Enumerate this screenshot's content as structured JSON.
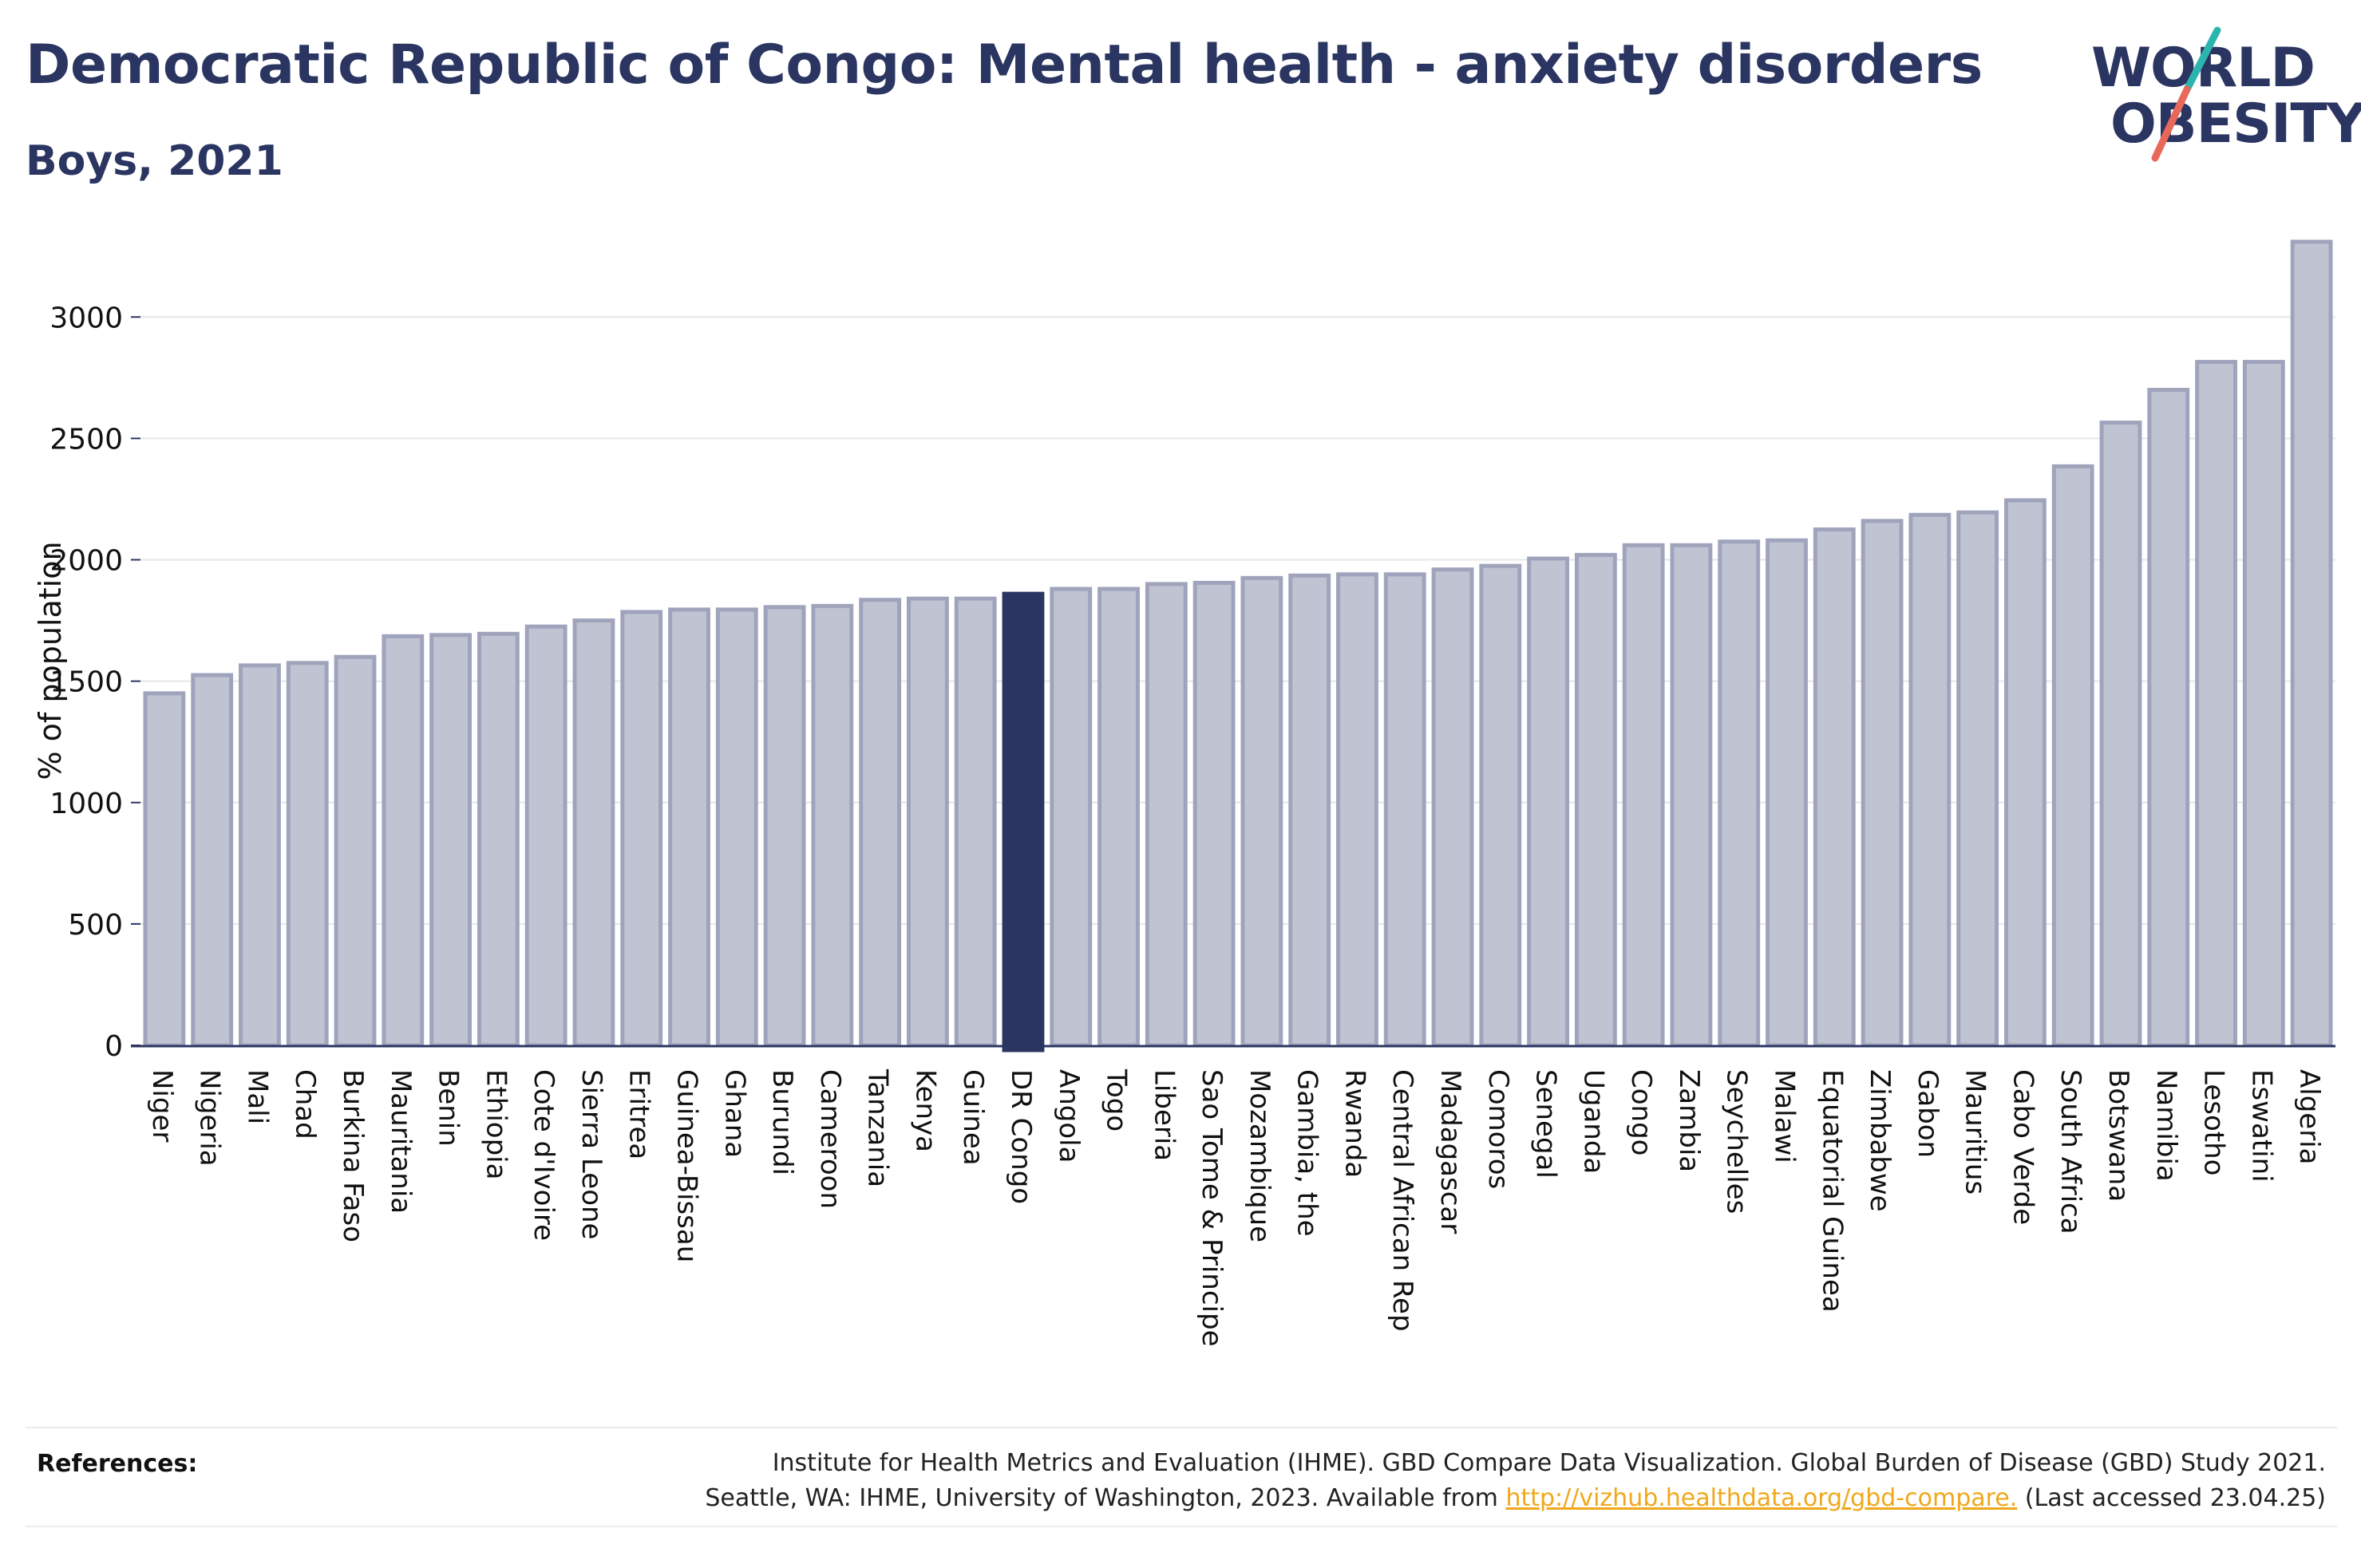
{
  "header": {
    "title": "Democratic Republic of Congo: Mental health - anxiety disorders",
    "subtitle": "Boys, 2021"
  },
  "logo": {
    "line1": "WORLD",
    "line2": "OBESITY",
    "slash_colors": [
      "#2cb5ae",
      "#e8685a"
    ]
  },
  "colors": {
    "bar": "#c0c3d1",
    "bar_stroke": "#9fa4bc",
    "highlight": "#2b3561",
    "text": "#2b3561"
  },
  "chart_data": {
    "type": "bar",
    "title": "Democratic Republic of Congo: Mental health - anxiety disorders",
    "subtitle": "Boys, 2021",
    "xlabel": "",
    "ylabel": "% of population",
    "ylim": [
      0,
      3300
    ],
    "yticks": [
      0,
      500,
      1000,
      1500,
      2000,
      2500,
      3000
    ],
    "grid": true,
    "highlight_category": "DR Congo",
    "categories": [
      "Niger",
      "Nigeria",
      "Mali",
      "Chad",
      "Burkina Faso",
      "Mauritania",
      "Benin",
      "Ethiopia",
      "Cote d'Ivoire",
      "Sierra Leone",
      "Eritrea",
      "Guinea-Bissau",
      "Ghana",
      "Burundi",
      "Cameroon",
      "Tanzania",
      "Kenya",
      "Guinea",
      "DR Congo",
      "Angola",
      "Togo",
      "Liberia",
      "Sao Tome & Principe",
      "Mozambique",
      "Gambia, the",
      "Rwanda",
      "Central African Rep",
      "Madagascar",
      "Comoros",
      "Senegal",
      "Uganda",
      "Congo",
      "Zambia",
      "Seychelles",
      "Malawi",
      "Equatorial Guinea",
      "Zimbabwe",
      "Gabon",
      "Mauritius",
      "Cabo Verde",
      "South Africa",
      "Botswana",
      "Namibia",
      "Lesotho",
      "Eswatini",
      "Algeria"
    ],
    "values": [
      1450,
      1525,
      1565,
      1575,
      1600,
      1685,
      1690,
      1695,
      1725,
      1750,
      1785,
      1795,
      1795,
      1805,
      1810,
      1835,
      1840,
      1840,
      1860,
      1880,
      1880,
      1900,
      1905,
      1925,
      1935,
      1940,
      1940,
      1960,
      1975,
      2005,
      2020,
      2060,
      2060,
      2075,
      2080,
      2125,
      2160,
      2185,
      2195,
      2245,
      2385,
      2565,
      2700,
      2815,
      2815,
      3310
    ]
  },
  "references": {
    "label": "References:",
    "line1": "Institute for Health Metrics and Evaluation (IHME). GBD Compare Data Visualization. Global Burden of Disease (GBD) Study 2021.",
    "line2_prefix": "Seattle, WA: IHME, University of Washington, 2023. Available from ",
    "link": "http://vizhub.healthdata.org/gbd-compare.",
    "line2_suffix": " (Last accessed 23.04.25)"
  }
}
